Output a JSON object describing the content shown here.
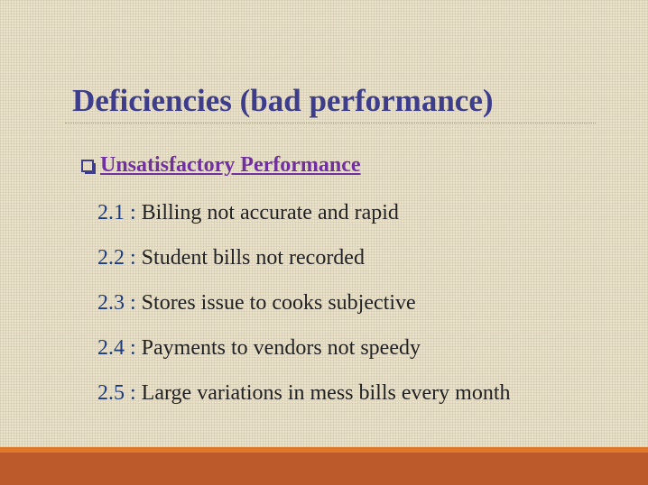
{
  "slide": {
    "title": "Deficiencies (bad performance)",
    "section": {
      "heading": "Unsatisfactory Performance",
      "items": [
        {
          "number": "2.1",
          "separator": " : ",
          "text": "Billing not accurate and rapid"
        },
        {
          "number": "2.2",
          "separator": " : ",
          "text": "Student bills not recorded"
        },
        {
          "number": "2.3",
          "separator": " : ",
          "text": "Stores issue to cooks subjective"
        },
        {
          "number": "2.4",
          "separator": " : ",
          "text": "Payments to vendors not speedy"
        },
        {
          "number": "2.5",
          "separator": " : ",
          "text": "Large variations in mess bills every month"
        }
      ]
    }
  },
  "colors": {
    "background": "#e9e1c9",
    "title": "#3d3d8c",
    "heading": "#7030a0",
    "footer": "#bc5a2c",
    "footer_accent": "#e07a2a"
  },
  "icons": {
    "bullet": "square-bullet-icon"
  }
}
